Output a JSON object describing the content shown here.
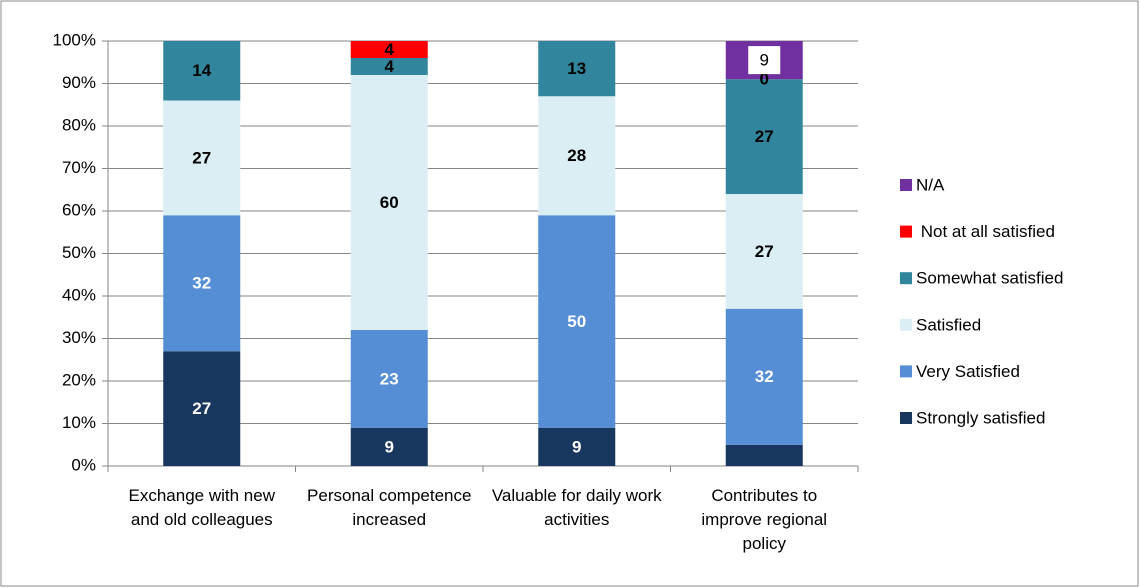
{
  "chart_data": {
    "type": "stacked_bar",
    "categories": [
      "Exchange with new and old colleagues",
      "Personal competence increased",
      "Valuable for daily work activities",
      "Contributes to improve regional policy"
    ],
    "series": [
      {
        "name": "Strongly satisfied",
        "color": "#17375e",
        "label_color": "#ffffff",
        "values": [
          27,
          9,
          9,
          5
        ],
        "value_labels": [
          "27",
          "9",
          "9",
          null
        ]
      },
      {
        "name": "Very Satisfied",
        "color": "#558ed5",
        "label_color": "#ffffff",
        "values": [
          32,
          23,
          50,
          32
        ]
      },
      {
        "name": "Satisfied",
        "color": "#dbeef4",
        "label_color": "#000000",
        "values": [
          27,
          60,
          28,
          27
        ]
      },
      {
        "name": "Somewhat satisfied",
        "color": "#31859c",
        "label_color": "#000000",
        "values": [
          14,
          4,
          13,
          27
        ]
      },
      {
        "name": " Not at all satisfied",
        "color": "#ff0000",
        "label_color": "#000000",
        "values": [
          null,
          4,
          null,
          0
        ]
      },
      {
        "name": "N/A",
        "color": "#7030a0",
        "label_color": "#000000",
        "values": [
          null,
          null,
          null,
          9
        ]
      }
    ],
    "ylim": [
      0,
      100
    ],
    "yticks": [
      {
        "value": 0,
        "label": "0%"
      },
      {
        "value": 10,
        "label": "10%"
      },
      {
        "value": 20,
        "label": "20%"
      },
      {
        "value": 30,
        "label": "30%"
      },
      {
        "value": 40,
        "label": "40%"
      },
      {
        "value": 50,
        "label": "50%"
      },
      {
        "value": 60,
        "label": "60%"
      },
      {
        "value": 70,
        "label": "70%"
      },
      {
        "value": 80,
        "label": "80%"
      },
      {
        "value": 90,
        "label": "90%"
      },
      {
        "value": 100,
        "label": "100%"
      }
    ],
    "grid": true,
    "legend": "right"
  }
}
